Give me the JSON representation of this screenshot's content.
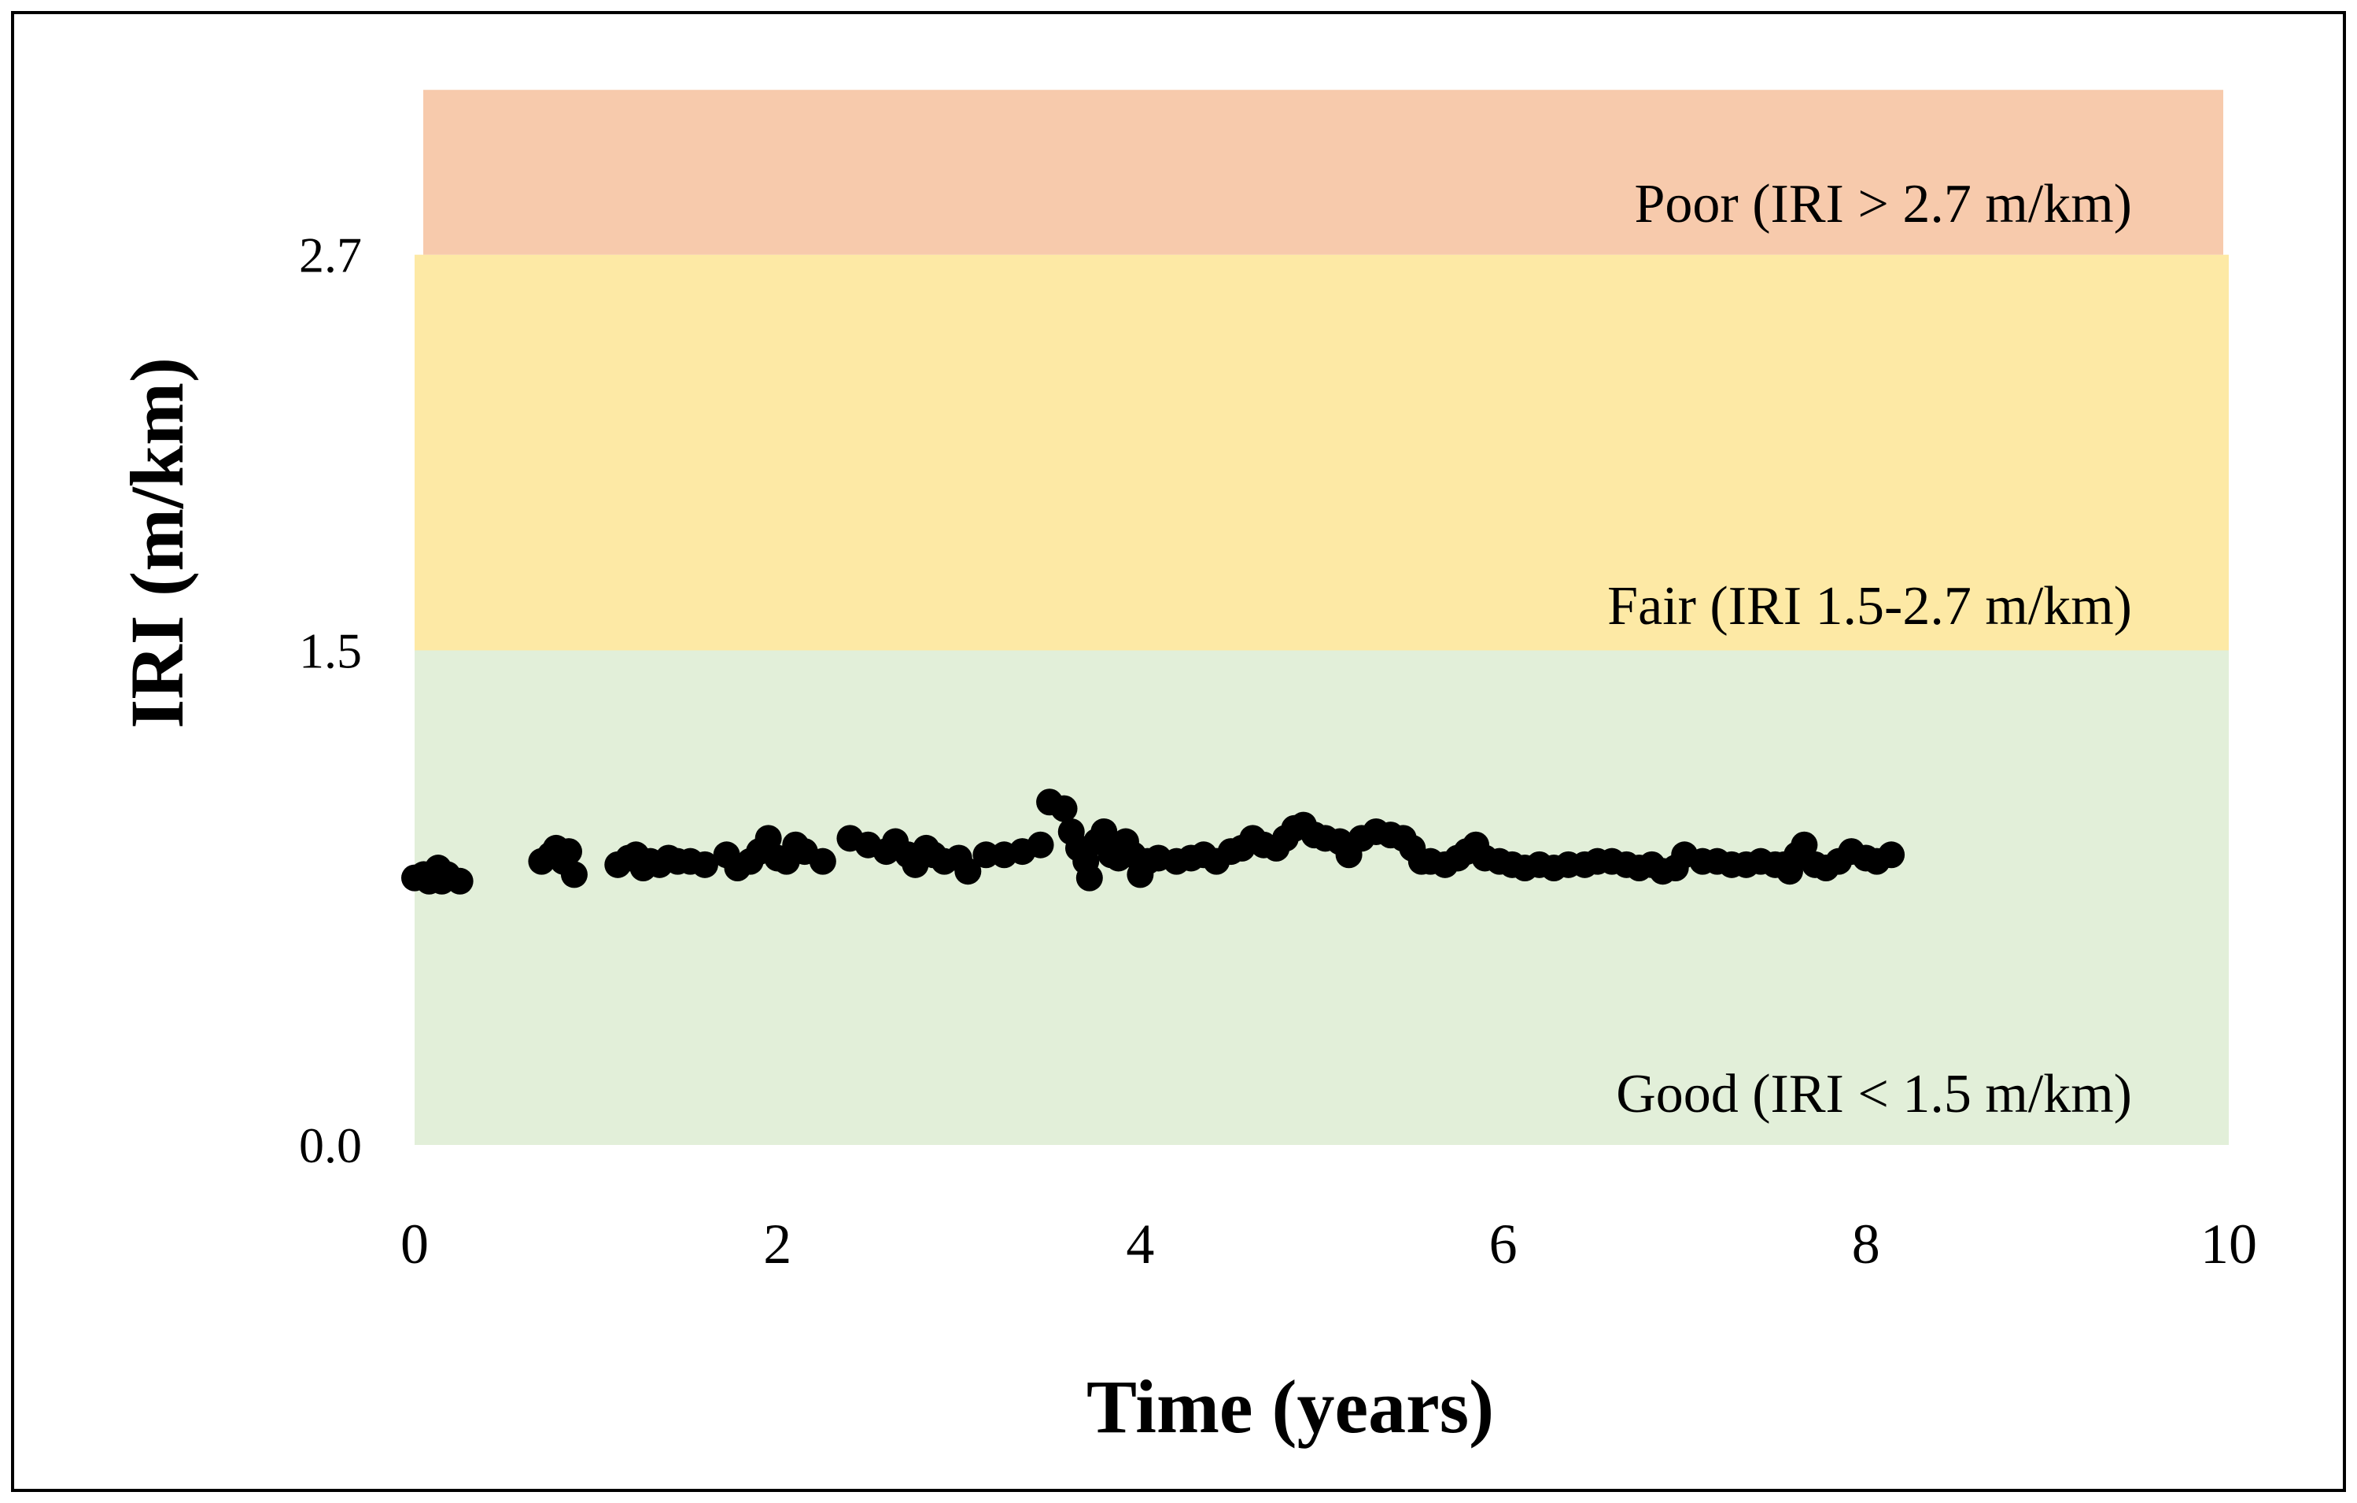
{
  "chart_data": {
    "type": "scatter",
    "title": "",
    "xlabel": "Time (years)",
    "ylabel": "IRI (m/km)",
    "xlim": [
      0,
      10
    ],
    "ylim": [
      0,
      3.2
    ],
    "x_ticks": [
      "0",
      "2",
      "4",
      "6",
      "8",
      "10"
    ],
    "y_ticks": [
      "0.0",
      "1.5",
      "2.7"
    ],
    "grid": false,
    "legend": "none",
    "bands": [
      {
        "name": "good",
        "label": "Good (IRI < 1.5 m/km)",
        "y0": 0,
        "y1": 1.5,
        "color": "#e2efd9"
      },
      {
        "name": "fair",
        "label": "Fair (IRI 1.5-2.7 m/km)",
        "y0": 1.5,
        "y1": 2.7,
        "color": "#fde9a5"
      },
      {
        "name": "poor",
        "label": "Poor (IRI > 2.7 m/km)",
        "y0": 2.7,
        "y1": 3.2,
        "color": "#f7caac"
      }
    ],
    "marker_color": "#000000",
    "points": [
      [
        0.0,
        0.81
      ],
      [
        0.05,
        0.82
      ],
      [
        0.08,
        0.8
      ],
      [
        0.1,
        0.82
      ],
      [
        0.13,
        0.84
      ],
      [
        0.15,
        0.8
      ],
      [
        0.18,
        0.82
      ],
      [
        0.25,
        0.8
      ],
      [
        0.7,
        0.86
      ],
      [
        0.75,
        0.88
      ],
      [
        0.78,
        0.9
      ],
      [
        0.82,
        0.86
      ],
      [
        0.85,
        0.89
      ],
      [
        0.88,
        0.82
      ],
      [
        1.12,
        0.85
      ],
      [
        1.18,
        0.87
      ],
      [
        1.22,
        0.88
      ],
      [
        1.26,
        0.84
      ],
      [
        1.3,
        0.86
      ],
      [
        1.35,
        0.85
      ],
      [
        1.4,
        0.87
      ],
      [
        1.45,
        0.86
      ],
      [
        1.52,
        0.86
      ],
      [
        1.6,
        0.85
      ],
      [
        1.72,
        0.88
      ],
      [
        1.78,
        0.84
      ],
      [
        1.85,
        0.86
      ],
      [
        1.9,
        0.89
      ],
      [
        1.95,
        0.93
      ],
      [
        2.0,
        0.87
      ],
      [
        2.05,
        0.86
      ],
      [
        2.1,
        0.91
      ],
      [
        2.15,
        0.89
      ],
      [
        2.25,
        0.86
      ],
      [
        2.4,
        0.93
      ],
      [
        2.5,
        0.91
      ],
      [
        2.6,
        0.89
      ],
      [
        2.65,
        0.92
      ],
      [
        2.72,
        0.88
      ],
      [
        2.76,
        0.85
      ],
      [
        2.82,
        0.9
      ],
      [
        2.86,
        0.88
      ],
      [
        2.92,
        0.86
      ],
      [
        3.0,
        0.87
      ],
      [
        3.05,
        0.83
      ],
      [
        3.15,
        0.88
      ],
      [
        3.25,
        0.88
      ],
      [
        3.35,
        0.89
      ],
      [
        3.45,
        0.91
      ],
      [
        3.5,
        1.04
      ],
      [
        3.58,
        1.02
      ],
      [
        3.62,
        0.95
      ],
      [
        3.66,
        0.9
      ],
      [
        3.7,
        0.86
      ],
      [
        3.72,
        0.81
      ],
      [
        3.76,
        0.92
      ],
      [
        3.8,
        0.95
      ],
      [
        3.84,
        0.88
      ],
      [
        3.88,
        0.87
      ],
      [
        3.92,
        0.92
      ],
      [
        3.96,
        0.88
      ],
      [
        4.0,
        0.82
      ],
      [
        4.04,
        0.86
      ],
      [
        4.1,
        0.87
      ],
      [
        4.2,
        0.86
      ],
      [
        4.28,
        0.87
      ],
      [
        4.35,
        0.88
      ],
      [
        4.42,
        0.86
      ],
      [
        4.5,
        0.89
      ],
      [
        4.56,
        0.9
      ],
      [
        4.62,
        0.93
      ],
      [
        4.68,
        0.91
      ],
      [
        4.75,
        0.9
      ],
      [
        4.8,
        0.93
      ],
      [
        4.85,
        0.96
      ],
      [
        4.9,
        0.97
      ],
      [
        4.96,
        0.94
      ],
      [
        5.02,
        0.93
      ],
      [
        5.1,
        0.92
      ],
      [
        5.15,
        0.88
      ],
      [
        5.22,
        0.93
      ],
      [
        5.3,
        0.95
      ],
      [
        5.38,
        0.94
      ],
      [
        5.45,
        0.93
      ],
      [
        5.5,
        0.9
      ],
      [
        5.55,
        0.86
      ],
      [
        5.6,
        0.86
      ],
      [
        5.68,
        0.85
      ],
      [
        5.75,
        0.87
      ],
      [
        5.8,
        0.89
      ],
      [
        5.85,
        0.91
      ],
      [
        5.9,
        0.87
      ],
      [
        5.98,
        0.86
      ],
      [
        6.05,
        0.85
      ],
      [
        6.12,
        0.84
      ],
      [
        6.2,
        0.85
      ],
      [
        6.28,
        0.84
      ],
      [
        6.36,
        0.85
      ],
      [
        6.45,
        0.85
      ],
      [
        6.52,
        0.86
      ],
      [
        6.6,
        0.86
      ],
      [
        6.68,
        0.85
      ],
      [
        6.75,
        0.84
      ],
      [
        6.82,
        0.85
      ],
      [
        6.88,
        0.83
      ],
      [
        6.95,
        0.84
      ],
      [
        7.0,
        0.88
      ],
      [
        7.1,
        0.86
      ],
      [
        7.18,
        0.86
      ],
      [
        7.26,
        0.85
      ],
      [
        7.34,
        0.85
      ],
      [
        7.42,
        0.86
      ],
      [
        7.5,
        0.85
      ],
      [
        7.55,
        0.85
      ],
      [
        7.58,
        0.83
      ],
      [
        7.62,
        0.88
      ],
      [
        7.66,
        0.91
      ],
      [
        7.72,
        0.85
      ],
      [
        7.78,
        0.84
      ],
      [
        7.85,
        0.86
      ],
      [
        7.92,
        0.89
      ],
      [
        8.0,
        0.87
      ],
      [
        8.06,
        0.86
      ],
      [
        8.14,
        0.88
      ]
    ]
  }
}
